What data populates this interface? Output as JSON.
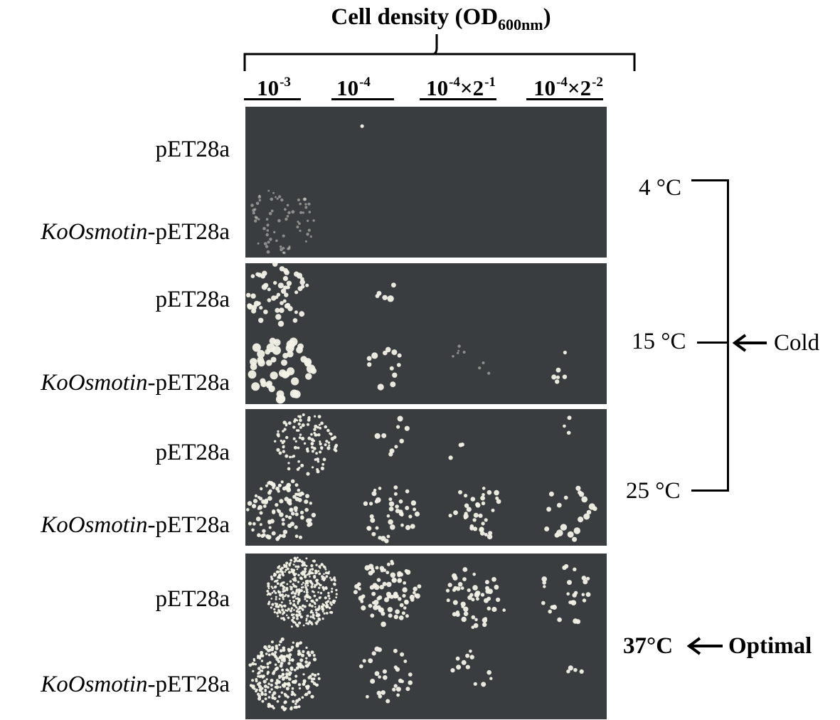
{
  "header": {
    "title_main": "Cell density (OD",
    "title_sub": "600nm",
    "title_close": ")"
  },
  "dilutions": [
    {
      "base": "10",
      "exp": "-3",
      "mult": "",
      "mult_exp": ""
    },
    {
      "base": "10",
      "exp": "-4",
      "mult": "",
      "mult_exp": ""
    },
    {
      "base": "10",
      "exp": "-4",
      "mult": "×2",
      "mult_exp": "-1"
    },
    {
      "base": "10",
      "exp": "-4",
      "mult": "×2",
      "mult_exp": "-2"
    }
  ],
  "rows": [
    {
      "italic": "",
      "plain": "pET28a"
    },
    {
      "italic": "KoOsmotin",
      "plain": "-pET28a"
    },
    {
      "italic": "",
      "plain": "pET28a"
    },
    {
      "italic": "KoOsmotin",
      "plain": "-pET28a"
    },
    {
      "italic": "",
      "plain": "pET28a"
    },
    {
      "italic": "KoOsmotin",
      "plain": "-pET28a"
    },
    {
      "italic": "",
      "plain": "pET28a"
    },
    {
      "italic": "KoOsmotin",
      "plain": "-pET28a"
    }
  ],
  "temperatures": {
    "t4": "4 °C",
    "t15": "15 °C",
    "t25": "25 °C",
    "t37": "37°C"
  },
  "annotations": {
    "cold": "Cold",
    "optimal": "Optimal"
  },
  "colors": {
    "plate_background": "#3a3d40",
    "colony": "#f2f2e6",
    "bracket": "#000000"
  }
}
